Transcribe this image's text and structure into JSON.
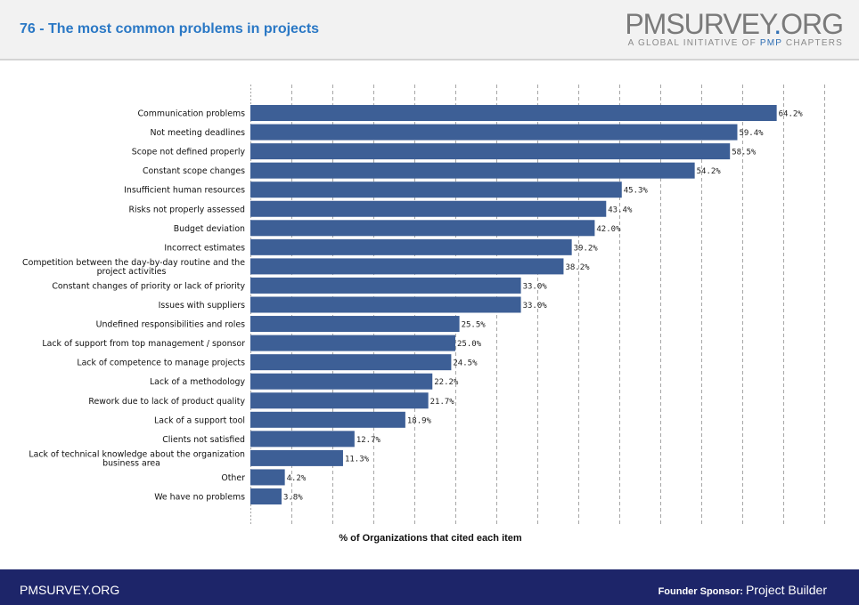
{
  "header": {
    "title": "76 - The most common problems in projects",
    "logo_pm": "PMSURVEY",
    "logo_dot": ".",
    "logo_org": "ORG",
    "logo_sub_pre": "A GLOBAL INITIATIVE OF ",
    "logo_sub_pmp": "PMP",
    "logo_sub_post": " CHAPTERS"
  },
  "footer": {
    "site": "PMSURVEY.ORG",
    "sponsor_label": "Founder Sponsor: ",
    "sponsor_name": "Project Builder"
  },
  "colors": {
    "bar": "#3d5f96",
    "title": "#2a78c5",
    "footer_bg": "#1d2569",
    "gridline": "#a6a6a6"
  },
  "chart_data": {
    "type": "bar",
    "orientation": "horizontal",
    "title": "",
    "xlabel": "% of Organizations that cited each item",
    "ylabel": "",
    "xlim": [
      0,
      70
    ],
    "grid": true,
    "value_suffix": "%",
    "categories": [
      "Communication problems",
      "Not meeting deadlines",
      "Scope not defined properly",
      "Constant scope changes",
      "Insufficient human resources",
      "Risks not properly assessed",
      "Budget deviation",
      "Incorrect estimates",
      "Competition between the day-by-day routine and the project activities",
      "Constant changes of priority or lack of priority",
      "Issues with suppliers",
      "Undefined responsibilities and roles",
      "Lack of support from top management / sponsor",
      "Lack of competence to manage projects",
      "Lack of a methodology",
      "Rework due to lack of product quality",
      "Lack of a support tool",
      "Clients not satisfied",
      "Lack of technical knowledge about the organization business area",
      "Other",
      "We have no problems"
    ],
    "category_lines": [
      [
        "Communication problems"
      ],
      [
        "Not meeting deadlines"
      ],
      [
        "Scope not defined properly"
      ],
      [
        "Constant scope changes"
      ],
      [
        "Insufficient human resources"
      ],
      [
        "Risks not properly assessed"
      ],
      [
        "Budget deviation"
      ],
      [
        "Incorrect estimates"
      ],
      [
        "Competition between the day-by-day routine and the",
        "project activities"
      ],
      [
        "Constant changes of priority or lack of priority"
      ],
      [
        "Issues with suppliers"
      ],
      [
        "Undefined responsibilities and roles"
      ],
      [
        "Lack of support from top management / sponsor"
      ],
      [
        "Lack of competence to manage projects"
      ],
      [
        "Lack of a methodology"
      ],
      [
        "Rework due to lack of product quality"
      ],
      [
        "Lack of a support tool"
      ],
      [
        "Clients not satisfied"
      ],
      [
        "Lack of technical knowledge about the organization",
        "business area"
      ],
      [
        "Other"
      ],
      [
        "We have no problems"
      ]
    ],
    "values": [
      64.2,
      59.4,
      58.5,
      54.2,
      45.3,
      43.4,
      42.0,
      39.2,
      38.2,
      33.0,
      33.0,
      25.5,
      25.0,
      24.5,
      22.2,
      21.7,
      18.9,
      12.7,
      11.3,
      4.2,
      3.8
    ],
    "value_labels": [
      "64.2%",
      "59.4%",
      "58.5%",
      "54.2%",
      "45.3%",
      "43.4%",
      "42.0%",
      "39.2%",
      "38.2%",
      "33.0%",
      "33.0%",
      "25.5%",
      "25.0%",
      "24.5%",
      "22.2%",
      "21.7%",
      "18.9%",
      "12.7%",
      "11.3%",
      "4.2%",
      "3.8%"
    ]
  }
}
